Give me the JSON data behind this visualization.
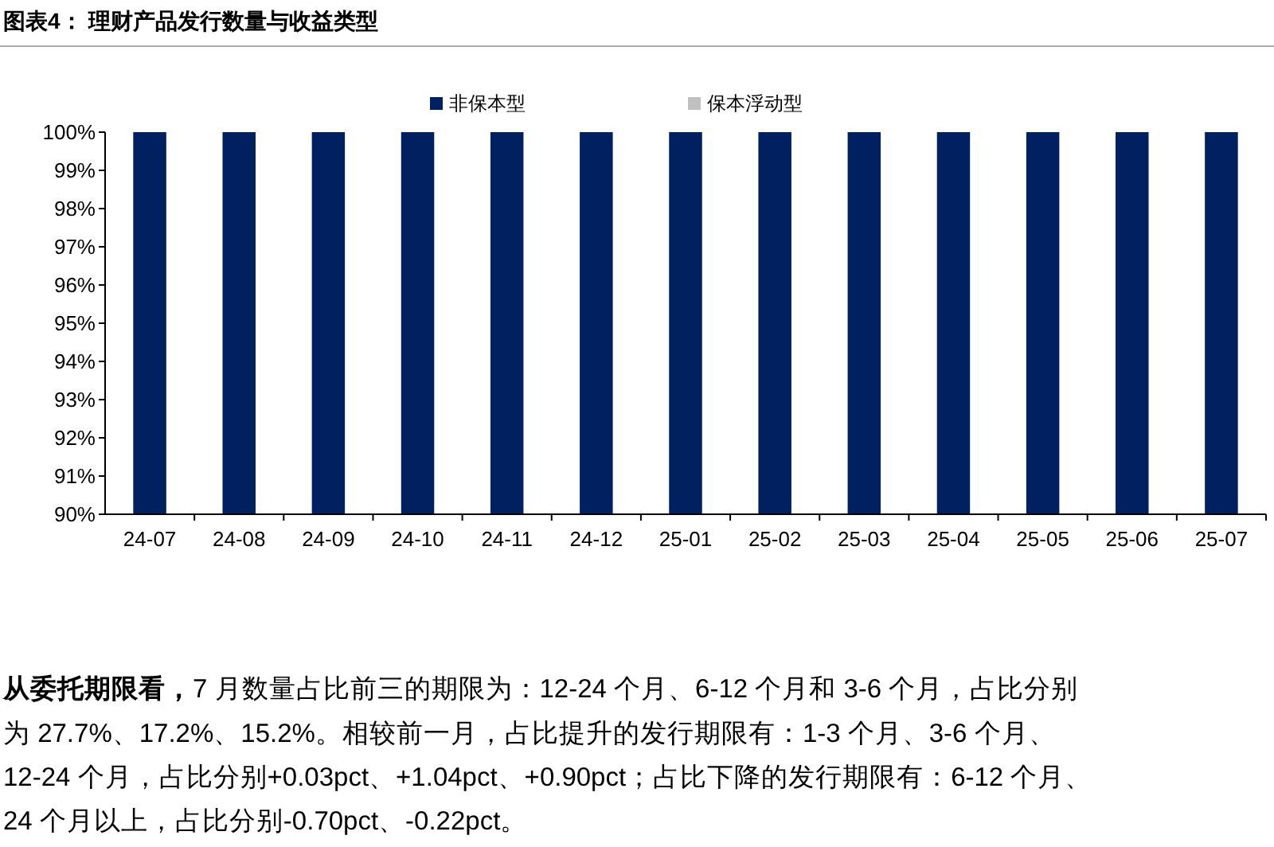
{
  "chart_data": {
    "type": "bar",
    "title": "图表4：  理财产品发行数量与收益类型",
    "legend": "top",
    "grid": false,
    "categories": [
      "24-07",
      "24-08",
      "24-09",
      "24-10",
      "24-11",
      "24-12",
      "25-01",
      "25-02",
      "25-03",
      "25-04",
      "25-05",
      "25-06",
      "25-07"
    ],
    "series": [
      {
        "name": "非保本型",
        "color": "#002060",
        "values": [
          100,
          100,
          100,
          100,
          100,
          100,
          100,
          100,
          100,
          100,
          100,
          100,
          100
        ]
      },
      {
        "name": "保本浮动型",
        "color": "#c0c0c0",
        "values": [
          null,
          null,
          null,
          null,
          null,
          null,
          null,
          null,
          null,
          null,
          null,
          null,
          null
        ]
      }
    ],
    "ylim": [
      90,
      100
    ],
    "yticks": [
      {
        "value": 90,
        "label": "90%"
      },
      {
        "value": 91,
        "label": "91%"
      },
      {
        "value": 92,
        "label": "92%"
      },
      {
        "value": 93,
        "label": "93%"
      },
      {
        "value": 94,
        "label": "94%"
      },
      {
        "value": 95,
        "label": "95%"
      },
      {
        "value": 96,
        "label": "96%"
      },
      {
        "value": 97,
        "label": "97%"
      },
      {
        "value": 98,
        "label": "98%"
      },
      {
        "value": 99,
        "label": "99%"
      },
      {
        "value": 100,
        "label": "100%"
      }
    ],
    "annotations": [
      "从委托期限看，",
      "7 月数量占比前三的期限为：12-24 个月、6-12 个月和 3-6 个月，占比分别",
      "为 27.7%、17.2%、15.2%。相较前一月，占比提升的发行期限有：1-3 个月、3-6 个月、",
      "12-24 个月，占比分别+0.03pct、+1.04pct、+0.90pct；占比下降的发行期限有：6-12 个月、",
      "24 个月以上，占比分别-0.70pct、-0.22pct。"
    ]
  }
}
